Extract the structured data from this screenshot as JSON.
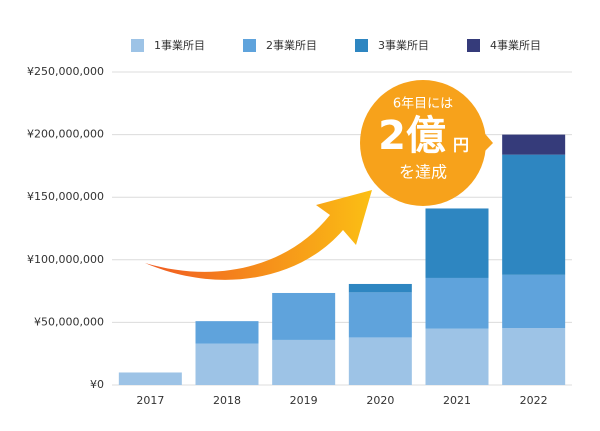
{
  "chart_data": {
    "type": "stacked_bar",
    "categories": [
      "2017",
      "2018",
      "2019",
      "2020",
      "2021",
      "2022"
    ],
    "series": [
      {
        "name": "1事業所目",
        "color": "#9dc3e6",
        "values": [
          10000000,
          33000000,
          36000000,
          38000000,
          45000000,
          45500000
        ]
      },
      {
        "name": "2事業所目",
        "color": "#5fa3dc",
        "values": [
          null,
          18000000,
          37500000,
          36000000,
          40500000,
          42500000
        ]
      },
      {
        "name": "3事業所目",
        "color": "#2e86c1",
        "values": [
          null,
          null,
          null,
          6700000,
          55500000,
          96000000
        ]
      },
      {
        "name": "4事業所目",
        "color": "#353b7a",
        "values": [
          null,
          null,
          null,
          null,
          null,
          16000000
        ]
      }
    ],
    "ylim": [
      0,
      250000000
    ],
    "yticks": [
      {
        "value": 0,
        "label": "¥0"
      },
      {
        "value": 50000000,
        "label": "¥50,000,000"
      },
      {
        "value": 100000000,
        "label": "¥100,000,000"
      },
      {
        "value": 150000000,
        "label": "¥150,000,000"
      },
      {
        "value": 200000000,
        "label": "¥200,000,000"
      },
      {
        "value": 250000000,
        "label": "¥250,000,000"
      }
    ],
    "grid": true,
    "annotation": {
      "line1": "6年目には",
      "big": "2億",
      "unit": "円",
      "line3": "を達成"
    }
  }
}
